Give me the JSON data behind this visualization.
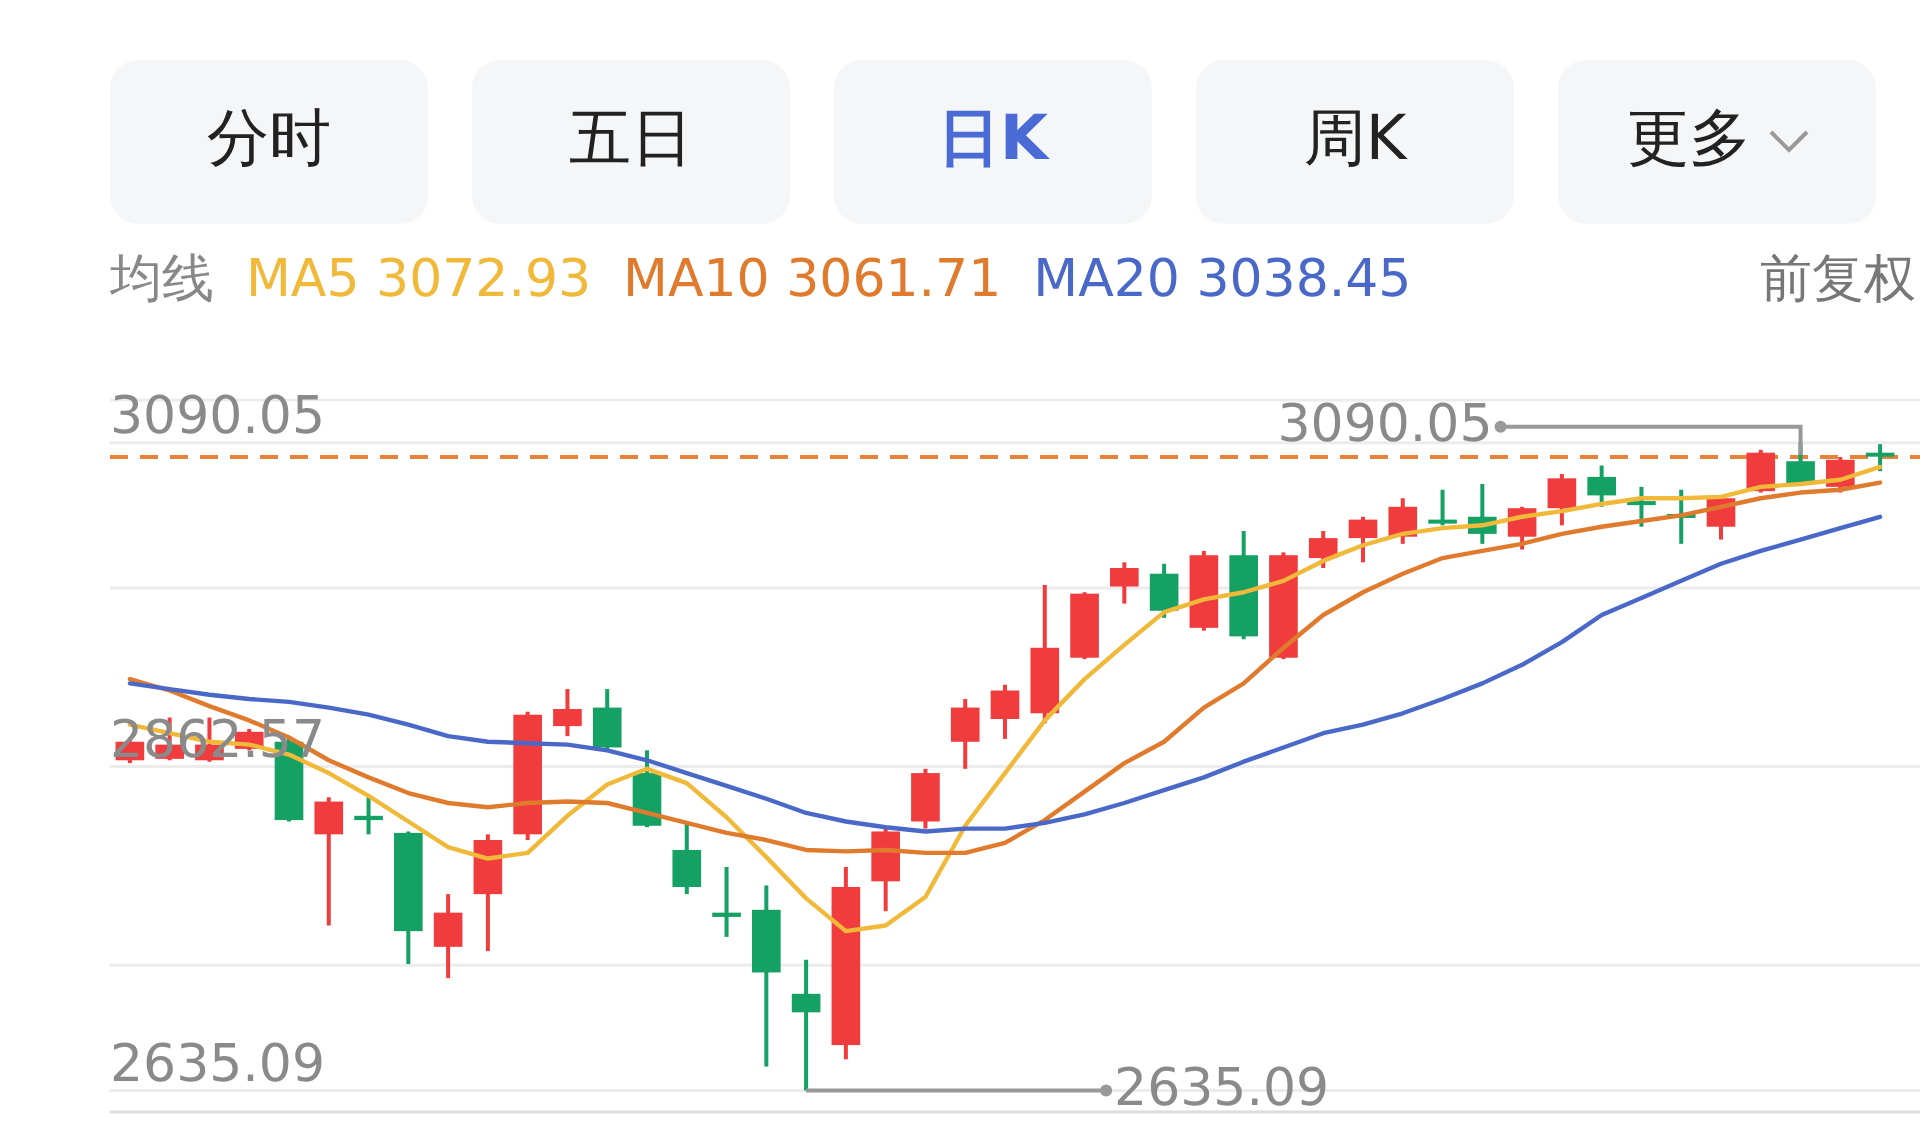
{
  "chart_data": {
    "type": "candlestick",
    "legend_title": "均线",
    "legend": "top left",
    "grid": "y",
    "categories": [
      null,
      null,
      null,
      null,
      null,
      null,
      null,
      null,
      null,
      null,
      null,
      null,
      null,
      null,
      null,
      null,
      null,
      null,
      null,
      null,
      null,
      null,
      null,
      null,
      null,
      null,
      null,
      null,
      null,
      null,
      null,
      null,
      null,
      null,
      null,
      null,
      null,
      null,
      null,
      null,
      null,
      null,
      null,
      null,
      null
    ],
    "ohlc": [
      [
        2867,
        2883,
        2865,
        2880
      ],
      [
        2868,
        2897,
        2867,
        2878
      ],
      [
        2867,
        2897,
        2866,
        2878
      ],
      [
        2875,
        2889,
        2874,
        2887
      ],
      [
        2880,
        2883,
        2824,
        2825
      ],
      [
        2815,
        2841,
        2751,
        2838
      ],
      [
        2828,
        2841,
        2815,
        2825
      ],
      [
        2816,
        2817,
        2724,
        2747
      ],
      [
        2736,
        2773,
        2714,
        2760
      ],
      [
        2773,
        2815,
        2733,
        2811
      ],
      [
        2815,
        2901,
        2811,
        2899
      ],
      [
        2891,
        2917,
        2884,
        2903
      ],
      [
        2904,
        2917,
        2875,
        2876
      ],
      [
        2858,
        2874,
        2820,
        2821
      ],
      [
        2804,
        2823,
        2773,
        2778
      ],
      [
        2760,
        2792,
        2743,
        2757
      ],
      [
        2762,
        2779,
        2652,
        2718
      ],
      [
        2703,
        2727,
        2635.09,
        2690
      ],
      [
        2667,
        2792,
        2657,
        2778
      ],
      [
        2782,
        2820,
        2761,
        2817
      ],
      [
        2824,
        2861,
        2819,
        2858
      ],
      [
        2880,
        2910,
        2861,
        2904
      ],
      [
        2896,
        2920,
        2882,
        2916
      ],
      [
        2900,
        2990,
        2893,
        2946
      ],
      [
        2939,
        2985,
        2938,
        2984
      ],
      [
        2989,
        3006,
        2977,
        3002
      ],
      [
        2998,
        3005,
        2967,
        2972
      ],
      [
        2960,
        3014,
        2958,
        3011
      ],
      [
        3011,
        3028,
        2952,
        2954
      ],
      [
        2939,
        3013,
        2938,
        3011
      ],
      [
        3009,
        3028,
        3002,
        3023
      ],
      [
        3023,
        3038,
        3006,
        3036
      ],
      [
        3024,
        3051,
        3019,
        3045
      ],
      [
        3036,
        3057,
        3032,
        3034
      ],
      [
        3038,
        3061,
        3019,
        3026
      ],
      [
        3024,
        3045,
        3015,
        3044
      ],
      [
        3044,
        3068,
        3032,
        3065
      ],
      [
        3066,
        3074,
        3045,
        3053
      ],
      [
        3049,
        3059,
        3031,
        3047
      ],
      [
        3040,
        3057,
        3019,
        3038
      ],
      [
        3031,
        3052,
        3022,
        3051
      ],
      [
        3056,
        3085,
        3055,
        3083
      ],
      [
        3077,
        3090.05,
        3060,
        3061
      ],
      [
        3059,
        3080,
        3055,
        3078
      ],
      [
        3083,
        3089,
        3070,
        3081
      ]
    ],
    "colors": [
      "#f03c3c",
      "#f03c3c",
      "#f03c3c",
      "#f03c3c",
      "#15a064",
      "#f03c3c",
      "#15a064",
      "#15a064",
      "#f03c3c",
      "#f03c3c",
      "#f03c3c",
      "#f03c3c",
      "#15a064",
      "#15a064",
      "#15a064",
      "#15a064",
      "#15a064",
      "#15a064",
      "#f03c3c",
      "#f03c3c",
      "#f03c3c",
      "#f03c3c",
      "#f03c3c",
      "#f03c3c",
      "#f03c3c",
      "#f03c3c",
      "#15a064",
      "#f03c3c",
      "#15a064",
      "#f03c3c",
      "#f03c3c",
      "#f03c3c",
      "#f03c3c",
      "#15a064",
      "#15a064",
      "#f03c3c",
      "#f03c3c",
      "#15a064",
      "#15a064",
      "#15a064",
      "#f03c3c",
      "#f03c3c",
      "#15a064",
      "#f03c3c",
      "#15a064"
    ],
    "series": [
      {
        "name": "MA5 3072.93",
        "type": "line",
        "color": "#f0b93a",
        "values": [
          2892,
          2886,
          2880,
          2878,
          2871,
          2858,
          2842,
          2824,
          2806,
          2798,
          2802,
          2828,
          2850,
          2861,
          2851,
          2827,
          2799,
          2770,
          2747,
          2751,
          2771,
          2821,
          2858,
          2895,
          2924,
          2948,
          2971,
          2980,
          2985,
          2993,
          3007,
          3018,
          3026,
          3030,
          3032,
          3038,
          3042,
          3047,
          3051,
          3051,
          3052,
          3059,
          3061,
          3064,
          3073
        ]
      },
      {
        "name": "MA10 3061.71",
        "type": "line",
        "color": "#e07b2e",
        "values": [
          2924,
          2916,
          2905,
          2895,
          2883,
          2867,
          2855,
          2844,
          2837,
          2834,
          2837,
          2838,
          2837,
          2830,
          2823,
          2816,
          2811,
          2804,
          2803,
          2804,
          2802,
          2802,
          2809,
          2825,
          2845,
          2865,
          2880,
          2904,
          2921,
          2946,
          2969,
          2985,
          2998,
          3009,
          3014,
          3019,
          3026,
          3031,
          3035,
          3039,
          3045,
          3051,
          3055,
          3057,
          3062
        ]
      },
      {
        "name": "MA20 3038.45",
        "type": "line",
        "color": "#4a68c8",
        "values": [
          2921,
          2917,
          2913,
          2910,
          2908,
          2904,
          2899,
          2892,
          2884,
          2880,
          2879,
          2878,
          2874,
          2867,
          2858,
          2849,
          2840,
          2830,
          2824,
          2820,
          2817,
          2819,
          2819,
          2823,
          2829,
          2837,
          2846,
          2855,
          2866,
          2876,
          2886,
          2892,
          2900,
          2910,
          2921,
          2934,
          2950,
          2969,
          2981,
          2993,
          3005,
          3014,
          3022,
          3030,
          3038
        ]
      }
    ],
    "ylim": [
      2620,
      3120
    ],
    "yticks": [
      {
        "value": 3120,
        "label": null
      },
      3090.05,
      {
        "value": 2988,
        "label": null
      },
      2862.57,
      {
        "value": 2723,
        "label": null
      },
      2635.09
    ],
    "ref_lines": [
      {
        "axis": "y",
        "value": 3080,
        "color": "#e8823a",
        "line_style": "dashed"
      }
    ],
    "annotations": [
      "分时",
      "五日",
      "日K",
      "周K",
      "更多",
      "前复权",
      "3090.05",
      "2635.09"
    ]
  }
}
